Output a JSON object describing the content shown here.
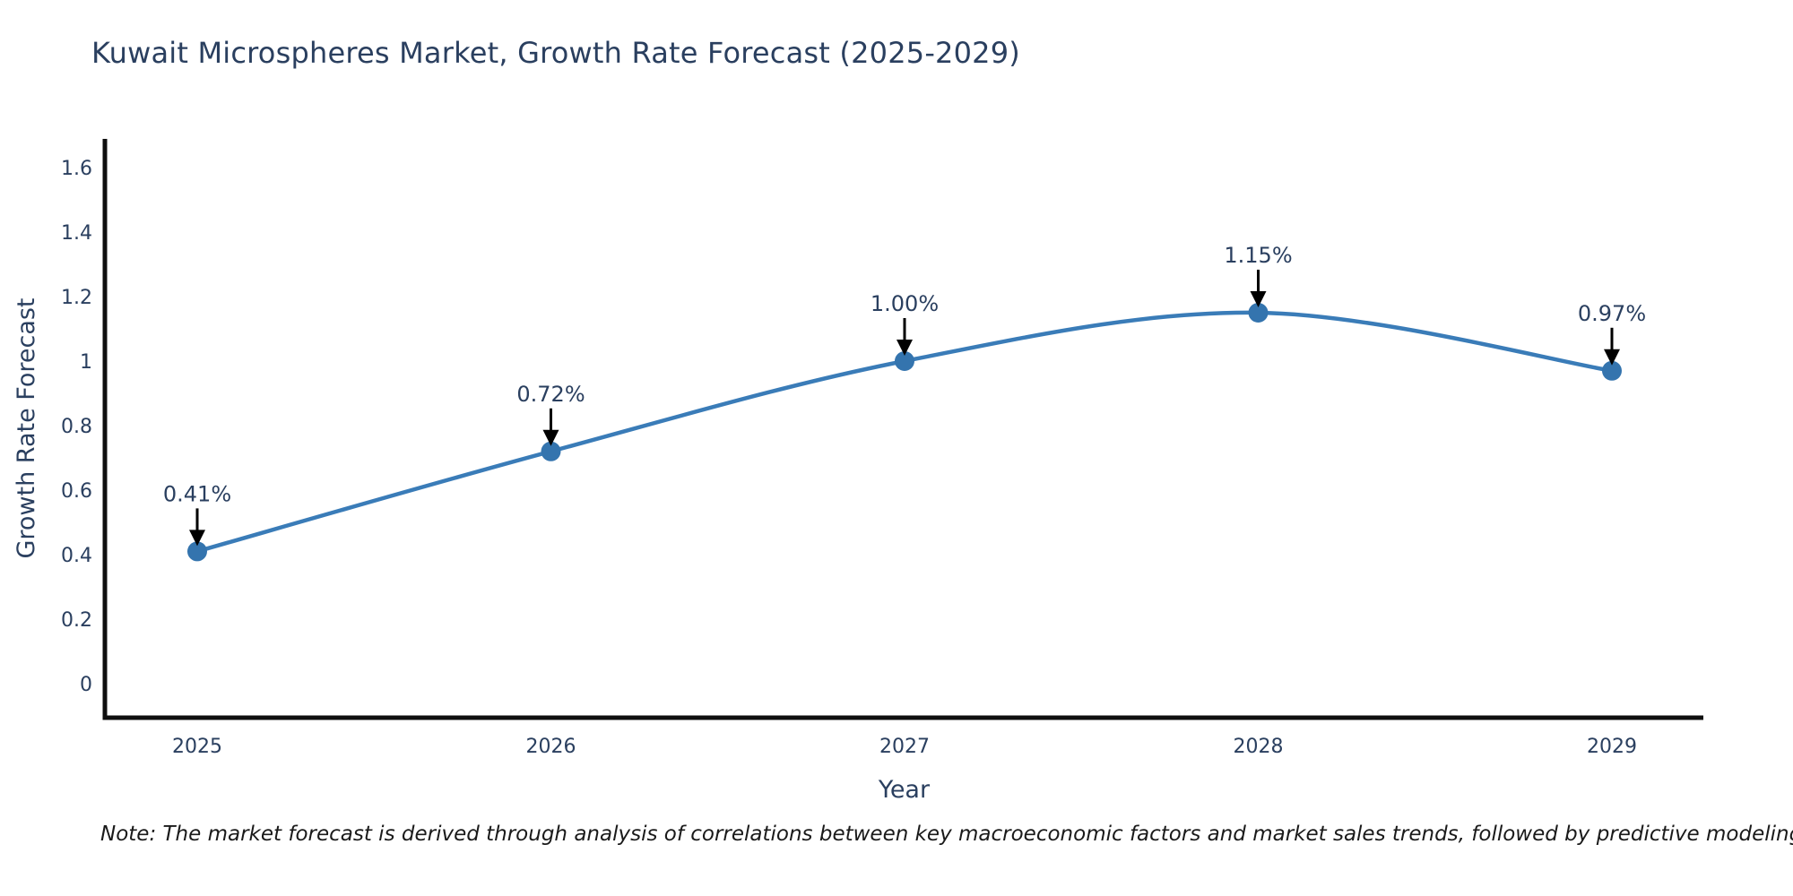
{
  "page": {
    "background": "#ffffff"
  },
  "note": "Note: The market forecast is derived through analysis of correlations between key macroeconomic factors and market sales trends, followed by predictive modeling to project future sales.",
  "chart_data": {
    "type": "line",
    "title": "Kuwait Microspheres Market, Growth Rate Forecast (2025-2029)",
    "xlabel": "Year",
    "ylabel": "Growth Rate Forecast",
    "x": [
      2025,
      2026,
      2027,
      2028,
      2029
    ],
    "values": [
      0.41,
      0.72,
      1.0,
      1.15,
      0.97
    ],
    "point_labels": [
      "0.41%",
      "0.72%",
      "1.00%",
      "1.15%",
      "0.97%"
    ],
    "xtick_labels": [
      "2025",
      "2026",
      "2027",
      "2028",
      "2029"
    ],
    "yticks": [
      0,
      0.2,
      0.4,
      0.6,
      0.8,
      1,
      1.2,
      1.4,
      1.6
    ],
    "ytick_labels": [
      "0",
      "0.2",
      "0.4",
      "0.6",
      "0.8",
      "1",
      "1.2",
      "1.4",
      "1.6"
    ],
    "ylim": [
      -0.11,
      1.69
    ],
    "line_shape": "spline",
    "grid": false,
    "legend_position": "none",
    "annotations_have_arrows": true,
    "colors": {
      "line": "#3a7cb8",
      "marker": "#3474ae",
      "axis": "#0f0f0f",
      "text": "#2a3f5f",
      "arrow": "#000000"
    }
  }
}
